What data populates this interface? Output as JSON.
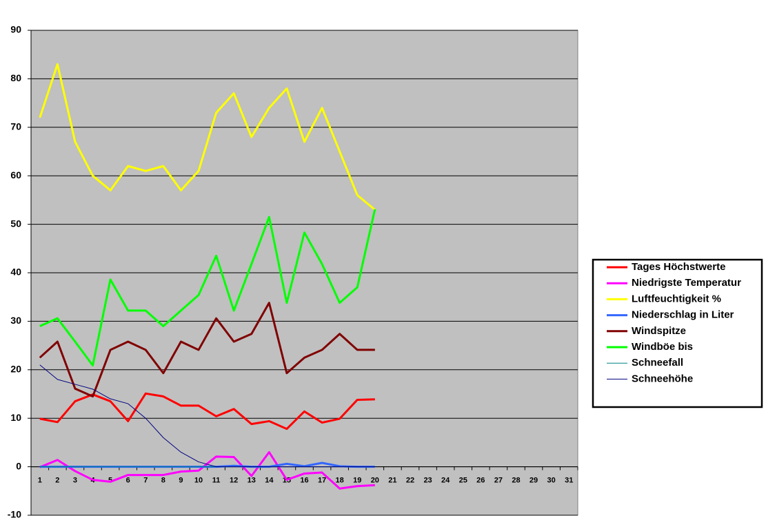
{
  "chart_data": {
    "type": "line",
    "categories": [
      "1",
      "2",
      "3",
      "4",
      "5",
      "6",
      "7",
      "8",
      "9",
      "10",
      "11",
      "12",
      "13",
      "14",
      "15",
      "16",
      "17",
      "18",
      "19",
      "20",
      "21",
      "22",
      "23",
      "24",
      "25",
      "26",
      "27",
      "28",
      "29",
      "30",
      "31"
    ],
    "ylim": [
      -10,
      90
    ],
    "yticks": [
      -10,
      0,
      10,
      20,
      30,
      40,
      50,
      60,
      70,
      80,
      90
    ],
    "grid": true,
    "legend": "right",
    "series": [
      {
        "name": "Tages Höchstwerte",
        "color": "#ff0000",
        "width": 3,
        "values": [
          9.9,
          9.2,
          13.5,
          14.9,
          13.5,
          9.4,
          15.1,
          14.5,
          12.6,
          12.6,
          10.4,
          11.9,
          8.8,
          9.4,
          7.8,
          11.4,
          9.1,
          9.9,
          13.8,
          13.9,
          null,
          null,
          null,
          null,
          null,
          null,
          null,
          null,
          null,
          null,
          null
        ]
      },
      {
        "name": "Niedrigste Temperatur",
        "color": "#ff00ff",
        "width": 3,
        "values": [
          -0.1,
          1.4,
          -0.9,
          -2.7,
          -3.1,
          -1.7,
          -1.7,
          -1.7,
          -1.0,
          -0.8,
          2.1,
          2.0,
          -1.9,
          3.0,
          -2.7,
          -1.4,
          -1.2,
          -4.5,
          -4.0,
          -3.8,
          null,
          null,
          null,
          null,
          null,
          null,
          null,
          null,
          null,
          null,
          null
        ]
      },
      {
        "name": "Luftfeuchtigkeit %",
        "color": "#ffff00",
        "width": 3,
        "values": [
          72,
          83,
          67,
          60,
          57,
          62,
          61,
          62,
          57,
          61,
          73,
          77,
          68,
          74,
          78,
          67,
          74,
          65,
          56,
          53,
          null,
          null,
          null,
          null,
          null,
          null,
          null,
          null,
          null,
          null,
          null
        ]
      },
      {
        "name": "Niederschlag in Liter",
        "color": "#3366ff",
        "width": 3,
        "values": [
          0,
          0,
          0,
          0,
          0,
          0,
          0,
          0,
          0,
          0,
          0,
          0.2,
          0,
          0,
          0.6,
          0.1,
          0.8,
          0.1,
          0,
          0,
          null,
          null,
          null,
          null,
          null,
          null,
          null,
          null,
          null,
          null,
          null
        ]
      },
      {
        "name": "Windspitze",
        "color": "#800000",
        "width": 3,
        "values": [
          22.5,
          25.8,
          16.1,
          14.5,
          24.1,
          25.8,
          24.1,
          19.3,
          25.8,
          24.1,
          30.6,
          25.8,
          27.4,
          33.8,
          19.3,
          22.5,
          24.1,
          27.4,
          24.1,
          24.1,
          null,
          null,
          null,
          null,
          null,
          null,
          null,
          null,
          null,
          null,
          null
        ]
      },
      {
        "name": "Windböe bis",
        "color": "#00ff00",
        "width": 3,
        "values": [
          29,
          30.6,
          25.8,
          20.9,
          38.6,
          32.2,
          32.2,
          29,
          32.2,
          35.4,
          43.5,
          32.2,
          41.8,
          51.5,
          33.8,
          48.3,
          41.8,
          33.8,
          37,
          53.1,
          null,
          null,
          null,
          null,
          null,
          null,
          null,
          null,
          null,
          null,
          null
        ]
      },
      {
        "name": "Schneefall",
        "color": "#008080",
        "width": 1,
        "values": [
          0,
          0,
          0,
          0,
          0,
          0,
          0,
          0,
          0,
          0,
          0,
          0,
          0,
          0,
          0,
          0,
          0,
          0,
          0,
          0,
          null,
          null,
          null,
          null,
          null,
          null,
          null,
          null,
          null,
          null,
          null
        ]
      },
      {
        "name": "Schneehöhe",
        "color": "#000080",
        "width": 1,
        "values": [
          21,
          18,
          17,
          16,
          14,
          13,
          10,
          6,
          3,
          1,
          0,
          0,
          0,
          0,
          0,
          0,
          0,
          0,
          0,
          0,
          null,
          null,
          null,
          null,
          null,
          null,
          null,
          null,
          null,
          null,
          null
        ]
      }
    ]
  }
}
